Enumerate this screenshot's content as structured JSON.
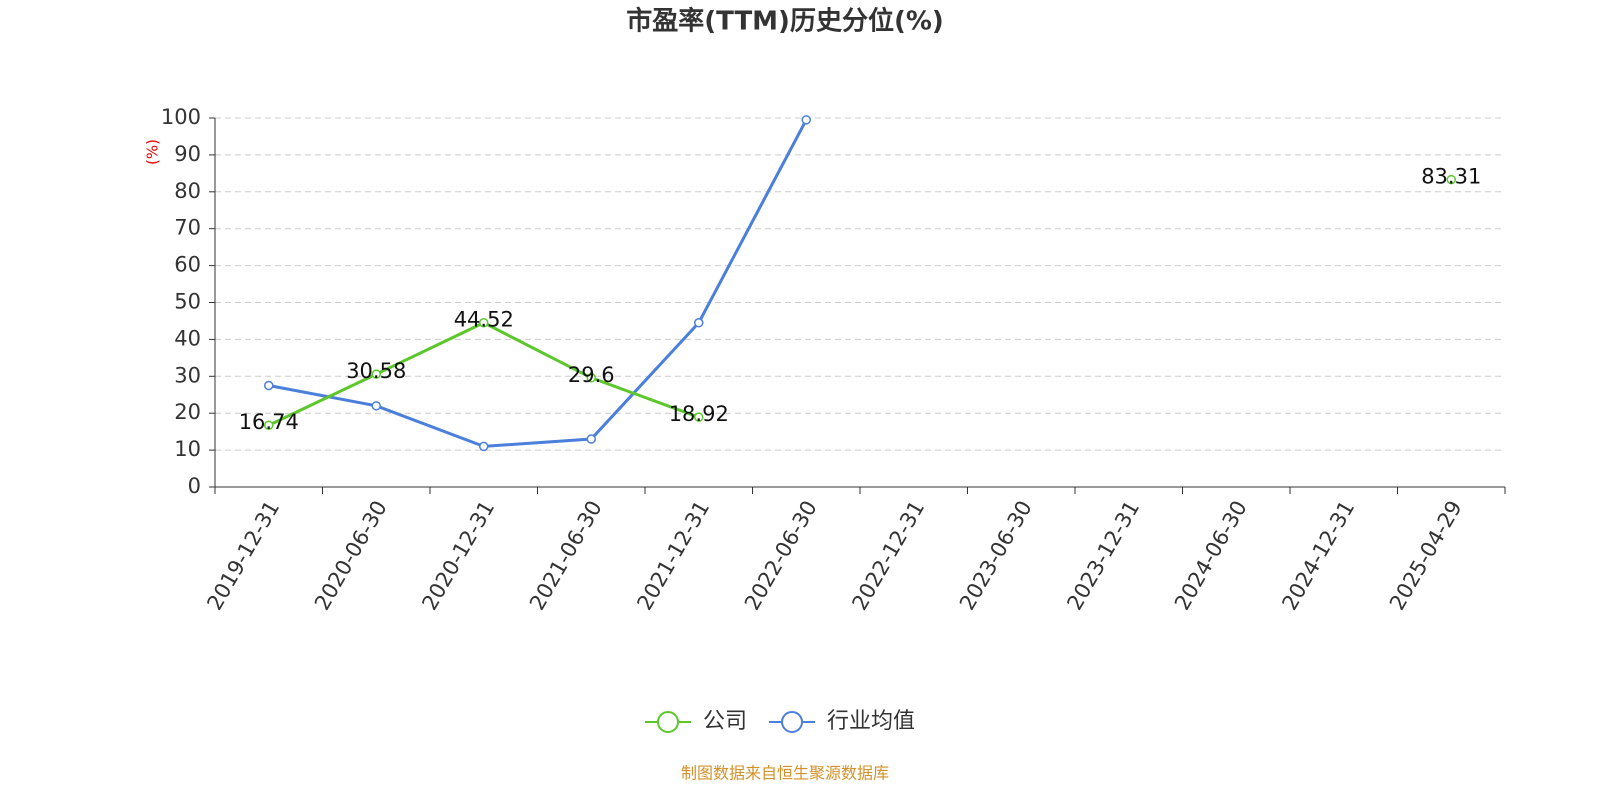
{
  "chart_data": {
    "type": "line",
    "title": "市盈率(TTM)历史分位(%)",
    "y_label": "(%)",
    "categories": [
      "2019-12-31",
      "2020-06-30",
      "2020-12-31",
      "2021-06-30",
      "2021-12-31",
      "2022-06-30",
      "2022-12-31",
      "2023-06-30",
      "2023-12-31",
      "2024-06-30",
      "2024-12-31",
      "2025-04-29"
    ],
    "series": [
      {
        "name": "公司",
        "color": "#5cc72b",
        "values": [
          16.74,
          30.58,
          44.52,
          29.6,
          18.92,
          null,
          null,
          null,
          null,
          null,
          null,
          83.31
        ],
        "data_labels": true
      },
      {
        "name": "行业均值",
        "color": "#4a7fdc",
        "values": [
          27.5,
          22,
          11,
          13,
          44.5,
          99.5,
          null,
          null,
          null,
          null,
          null,
          null
        ],
        "data_labels": false
      }
    ],
    "ylim": [
      0,
      100
    ],
    "yticks": [
      0,
      10,
      20,
      30,
      40,
      50,
      60,
      70,
      80,
      90,
      100
    ],
    "grid": true,
    "footer": "制图数据来自恒生聚源数据库"
  }
}
